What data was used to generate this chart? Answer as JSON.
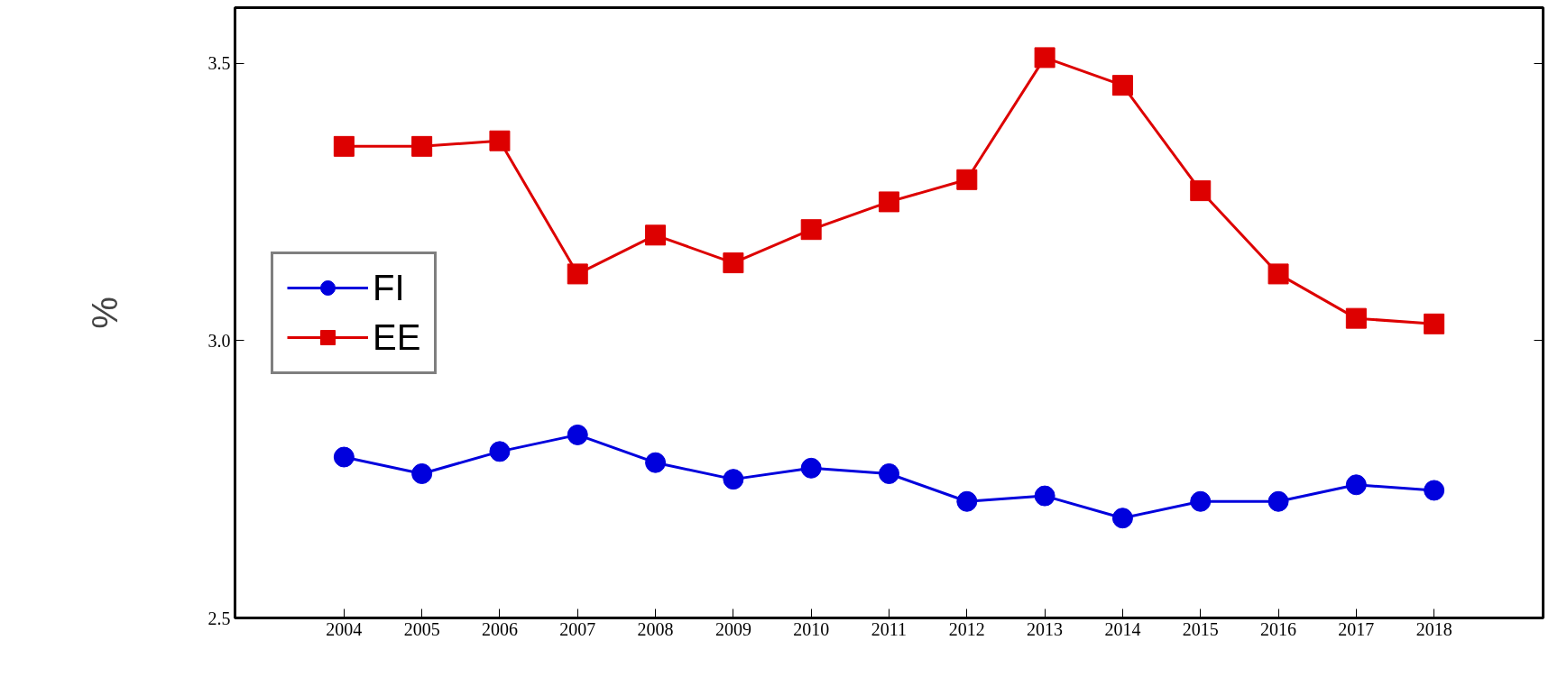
{
  "chart_data": {
    "type": "line",
    "ylabel": "%",
    "x": [
      2004,
      2005,
      2006,
      2007,
      2008,
      2009,
      2010,
      2011,
      2012,
      2013,
      2014,
      2015,
      2016,
      2017,
      2018
    ],
    "xlim": [
      2002.6,
      2019.4
    ],
    "xticks": [
      2004,
      2005,
      2006,
      2007,
      2008,
      2009,
      2010,
      2011,
      2012,
      2013,
      2014,
      2015,
      2016,
      2017,
      2018
    ],
    "ylim": [
      2.5,
      3.6
    ],
    "yticks": [
      {
        "value": 2.5,
        "label": "2.5"
      },
      {
        "value": 3.0,
        "label": "3.0"
      },
      {
        "value": 3.5,
        "label": "3.5"
      }
    ],
    "series": [
      {
        "name": "FI",
        "color": "#0000dd",
        "marker": "circle",
        "values": [
          2.79,
          2.76,
          2.8,
          2.83,
          2.78,
          2.75,
          2.77,
          2.76,
          2.71,
          2.72,
          2.68,
          2.71,
          2.71,
          2.74,
          2.73
        ]
      },
      {
        "name": "EE",
        "color": "#dd0000",
        "marker": "square",
        "values": [
          3.35,
          3.35,
          3.36,
          3.12,
          3.19,
          3.14,
          3.2,
          3.25,
          3.29,
          3.51,
          3.46,
          3.27,
          3.12,
          3.04,
          3.03
        ]
      }
    ],
    "grid": false,
    "legend": "left"
  }
}
